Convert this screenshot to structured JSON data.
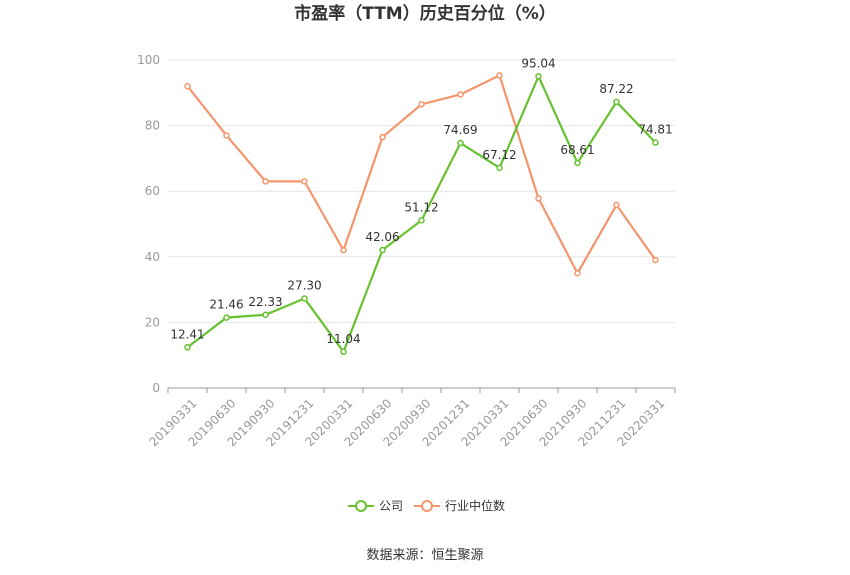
{
  "chart_data": {
    "type": "line",
    "title": "市盈率（TTM）历史百分位（%）",
    "categories": [
      "20190331",
      "20190630",
      "20190930",
      "20191231",
      "20200331",
      "20200630",
      "20200930",
      "20201231",
      "20210331",
      "20210630",
      "20210930",
      "20211231",
      "20220331"
    ],
    "ylim": [
      0,
      100
    ],
    "yticks": [
      0,
      20,
      40,
      60,
      80,
      100
    ],
    "grid": true,
    "legend_position": "bottom",
    "series": [
      {
        "name": "公司",
        "color": "#66c22e",
        "values": [
          12.41,
          21.46,
          22.33,
          27.3,
          11.04,
          42.06,
          51.12,
          74.69,
          67.12,
          95.04,
          68.61,
          87.22,
          74.81
        ],
        "labels": [
          "12.41",
          "21.46",
          "22.33",
          "27.30",
          "11.04",
          "42.06",
          "51.12",
          "74.69",
          "67.12",
          "95.04",
          "68.61",
          "87.22",
          "74.81"
        ]
      },
      {
        "name": "行业中位数",
        "color": "#f4956b",
        "values": [
          92,
          77,
          63,
          63,
          42,
          76.5,
          86.5,
          89.5,
          95.3,
          57.8,
          35,
          55.8,
          39
        ]
      }
    ]
  },
  "source": "数据来源：恒生聚源"
}
